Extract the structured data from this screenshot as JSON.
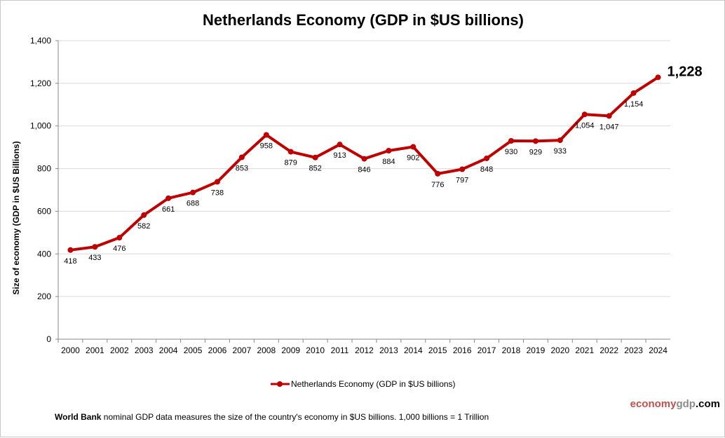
{
  "chart_data": {
    "type": "line",
    "title": "Netherlands Economy (GDP in $US billions)",
    "ylabel": "Size of economy (GDP in $US Billions)",
    "xlabel": "",
    "ylim": [
      0,
      1400
    ],
    "yticks": [
      "0",
      "200",
      "400",
      "600",
      "800",
      "1,000",
      "1,200",
      "1,400"
    ],
    "grid": true,
    "legend_position": "bottom",
    "categories": [
      "2000",
      "2001",
      "2002",
      "2003",
      "2004",
      "2005",
      "2006",
      "2007",
      "2008",
      "2009",
      "2010",
      "2011",
      "2012",
      "2013",
      "2014",
      "2015",
      "2016",
      "2017",
      "2018",
      "2019",
      "2020",
      "2021",
      "2022",
      "2023",
      "2024"
    ],
    "series": [
      {
        "name": "Netherlands Economy (GDP in $US billions)",
        "color": "#c00000",
        "values": [
          418,
          433,
          476,
          582,
          661,
          688,
          738,
          853,
          958,
          879,
          852,
          913,
          846,
          884,
          902,
          776,
          797,
          848,
          930,
          929,
          933,
          1054,
          1047,
          1154,
          1228
        ],
        "labels": [
          "418",
          "433",
          "476",
          "582",
          "661",
          "688",
          "738",
          "853",
          "958",
          "879",
          "852",
          "913",
          "846",
          "884",
          "902",
          "776",
          "797",
          "848",
          "930",
          "929",
          "933",
          "1,054",
          "1,047",
          "1,154",
          "1,228"
        ]
      }
    ]
  },
  "footer": {
    "source_bold": "World Bank",
    "note": " nominal GDP data  measures the size of the country's economy in $US billions. 1,000 billions = 1 Trillion",
    "brand_a": "economy",
    "brand_b": "gdp",
    "brand_c": ".com",
    "brand_colors": {
      "a": "#c0504d",
      "b": "#8c8c8c",
      "c": "#000000"
    }
  }
}
